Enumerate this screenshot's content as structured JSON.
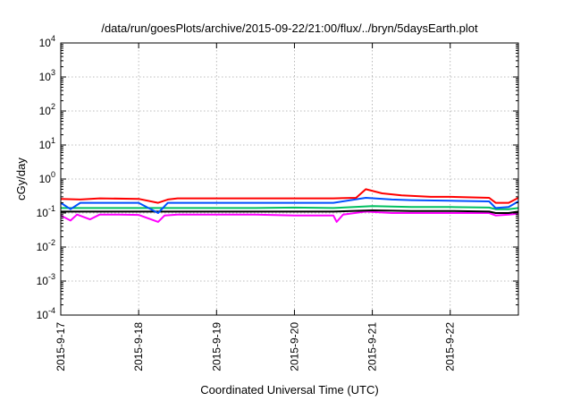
{
  "chart_data": {
    "type": "line",
    "title": "/data/run/goesPlots/archive/2015-09-22/21:00/flux/../bryn/5daysEarth.plot",
    "xlabel": "Coordinated Universal Time (UTC)",
    "ylabel": "cGy/day",
    "yscale": "log",
    "ylim": [
      0.0001,
      10000
    ],
    "xlim": [
      "2015-09-17T00:00",
      "2015-09-22T21:00"
    ],
    "x_ticks": [
      "2015-9-17",
      "2015-9-18",
      "2015-9-19",
      "2015-9-20",
      "2015-9-21",
      "2015-9-22"
    ],
    "y_ticks": [
      {
        "base": "10",
        "exp": "-4"
      },
      {
        "base": "10",
        "exp": "-3"
      },
      {
        "base": "10",
        "exp": "-2"
      },
      {
        "base": "10",
        "exp": "-1"
      },
      {
        "base": "10",
        "exp": "0"
      },
      {
        "base": "10",
        "exp": "1"
      },
      {
        "base": "10",
        "exp": "2"
      },
      {
        "base": "10",
        "exp": "3"
      },
      {
        "base": "10",
        "exp": "4"
      }
    ],
    "grid": true,
    "legend": "none",
    "series": [
      {
        "color": "#ff00ff",
        "points": [
          [
            "2015-09-17T00:00",
            0.085
          ],
          [
            "2015-09-17T03:00",
            0.06
          ],
          [
            "2015-09-17T05:00",
            0.09
          ],
          [
            "2015-09-17T09:00",
            0.065
          ],
          [
            "2015-09-17T12:00",
            0.09
          ],
          [
            "2015-09-17T18:00",
            0.09
          ],
          [
            "2015-09-18T00:00",
            0.088
          ],
          [
            "2015-09-18T06:00",
            0.055
          ],
          [
            "2015-09-18T08:00",
            0.085
          ],
          [
            "2015-09-18T12:00",
            0.09
          ],
          [
            "2015-09-19T00:00",
            0.09
          ],
          [
            "2015-09-19T12:00",
            0.09
          ],
          [
            "2015-09-20T00:00",
            0.085
          ],
          [
            "2015-09-20T12:00",
            0.085
          ],
          [
            "2015-09-20T13:00",
            0.055
          ],
          [
            "2015-09-20T15:00",
            0.09
          ],
          [
            "2015-09-20T22:00",
            0.11
          ],
          [
            "2015-09-21T06:00",
            0.1
          ],
          [
            "2015-09-21T18:00",
            0.1
          ],
          [
            "2015-09-22T00:00",
            0.1
          ],
          [
            "2015-09-22T12:00",
            0.1
          ],
          [
            "2015-09-22T14:00",
            0.085
          ],
          [
            "2015-09-22T18:00",
            0.09
          ],
          [
            "2015-09-22T21:00",
            0.095
          ]
        ]
      },
      {
        "color": "#000000",
        "points": [
          [
            "2015-09-17T00:00",
            0.11
          ],
          [
            "2015-09-17T12:00",
            0.11
          ],
          [
            "2015-09-18T00:00",
            0.11
          ],
          [
            "2015-09-18T12:00",
            0.11
          ],
          [
            "2015-09-19T00:00",
            0.11
          ],
          [
            "2015-09-19T12:00",
            0.11
          ],
          [
            "2015-09-20T00:00",
            0.11
          ],
          [
            "2015-09-20T12:00",
            0.11
          ],
          [
            "2015-09-21T00:00",
            0.12
          ],
          [
            "2015-09-21T12:00",
            0.115
          ],
          [
            "2015-09-22T00:00",
            0.115
          ],
          [
            "2015-09-22T12:00",
            0.11
          ],
          [
            "2015-09-22T14:00",
            0.1
          ],
          [
            "2015-09-22T18:00",
            0.1
          ],
          [
            "2015-09-22T21:00",
            0.11
          ]
        ]
      },
      {
        "color": "#00c060",
        "points": [
          [
            "2015-09-17T00:00",
            0.14
          ],
          [
            "2015-09-17T12:00",
            0.14
          ],
          [
            "2015-09-18T00:00",
            0.14
          ],
          [
            "2015-09-18T12:00",
            0.14
          ],
          [
            "2015-09-19T00:00",
            0.14
          ],
          [
            "2015-09-19T12:00",
            0.14
          ],
          [
            "2015-09-20T00:00",
            0.145
          ],
          [
            "2015-09-20T12:00",
            0.14
          ],
          [
            "2015-09-21T00:00",
            0.16
          ],
          [
            "2015-09-21T12:00",
            0.15
          ],
          [
            "2015-09-22T00:00",
            0.15
          ],
          [
            "2015-09-22T12:00",
            0.145
          ],
          [
            "2015-09-22T14:00",
            0.13
          ],
          [
            "2015-09-22T18:00",
            0.13
          ],
          [
            "2015-09-22T21:00",
            0.14
          ]
        ]
      },
      {
        "color": "#0050ff",
        "points": [
          [
            "2015-09-17T00:00",
            0.2
          ],
          [
            "2015-09-17T03:00",
            0.13
          ],
          [
            "2015-09-17T06:00",
            0.2
          ],
          [
            "2015-09-17T12:00",
            0.2
          ],
          [
            "2015-09-18T00:00",
            0.2
          ],
          [
            "2015-09-18T06:00",
            0.1
          ],
          [
            "2015-09-18T09:00",
            0.2
          ],
          [
            "2015-09-18T12:00",
            0.2
          ],
          [
            "2015-09-19T00:00",
            0.2
          ],
          [
            "2015-09-19T12:00",
            0.2
          ],
          [
            "2015-09-20T00:00",
            0.2
          ],
          [
            "2015-09-20T12:00",
            0.2
          ],
          [
            "2015-09-20T22:00",
            0.28
          ],
          [
            "2015-09-21T06:00",
            0.25
          ],
          [
            "2015-09-21T12:00",
            0.24
          ],
          [
            "2015-09-22T00:00",
            0.23
          ],
          [
            "2015-09-22T12:00",
            0.22
          ],
          [
            "2015-09-22T14:00",
            0.14
          ],
          [
            "2015-09-22T18:00",
            0.15
          ],
          [
            "2015-09-22T21:00",
            0.22
          ]
        ]
      },
      {
        "color": "#ff0000",
        "points": [
          [
            "2015-09-17T00:00",
            0.26
          ],
          [
            "2015-09-17T06:00",
            0.25
          ],
          [
            "2015-09-17T12:00",
            0.27
          ],
          [
            "2015-09-18T00:00",
            0.26
          ],
          [
            "2015-09-18T06:00",
            0.2
          ],
          [
            "2015-09-18T09:00",
            0.25
          ],
          [
            "2015-09-18T12:00",
            0.27
          ],
          [
            "2015-09-19T00:00",
            0.27
          ],
          [
            "2015-09-19T12:00",
            0.27
          ],
          [
            "2015-09-20T00:00",
            0.27
          ],
          [
            "2015-09-20T12:00",
            0.27
          ],
          [
            "2015-09-20T19:00",
            0.28
          ],
          [
            "2015-09-20T22:00",
            0.5
          ],
          [
            "2015-09-21T03:00",
            0.38
          ],
          [
            "2015-09-21T09:00",
            0.33
          ],
          [
            "2015-09-21T18:00",
            0.3
          ],
          [
            "2015-09-22T00:00",
            0.3
          ],
          [
            "2015-09-22T12:00",
            0.28
          ],
          [
            "2015-09-22T14:00",
            0.2
          ],
          [
            "2015-09-22T18:00",
            0.2
          ],
          [
            "2015-09-22T21:00",
            0.28
          ]
        ]
      }
    ]
  }
}
